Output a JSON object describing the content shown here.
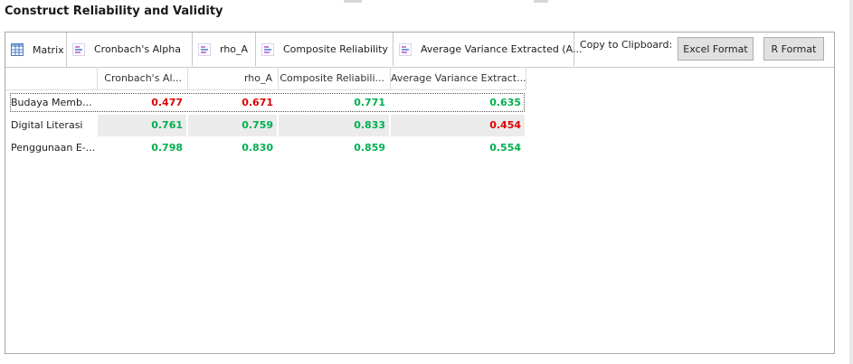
{
  "title": "Construct Reliability and Validity",
  "tabs": [
    {
      "label": "Matrix",
      "icon": "matrix-icon"
    },
    {
      "label": "Cronbach's Alpha",
      "icon": "chart-icon"
    },
    {
      "label": "rho_A",
      "icon": "chart-icon"
    },
    {
      "label": "Composite Reliability",
      "icon": "chart-icon"
    },
    {
      "label": "Average Variance Extracted (A...",
      "icon": "chart-icon"
    }
  ],
  "clipboard": {
    "label": "Copy to Clipboard:",
    "excel": "Excel Format",
    "r": "R Format"
  },
  "table": {
    "columns": [
      "Cronbach's Al...",
      "rho_A",
      "Composite Reliabili...",
      "Average Variance Extract..."
    ],
    "rows": [
      {
        "label": "Budaya Memb...",
        "values": [
          "0.477",
          "0.671",
          "0.771",
          "0.635"
        ],
        "status": [
          "red",
          "red",
          "green",
          "green"
        ]
      },
      {
        "label": "Digital Literasi",
        "values": [
          "0.761",
          "0.759",
          "0.833",
          "0.454"
        ],
        "status": [
          "green",
          "green",
          "green",
          "red"
        ]
      },
      {
        "label": "Penggunaan E-...",
        "values": [
          "0.798",
          "0.830",
          "0.859",
          "0.554"
        ],
        "status": [
          "green",
          "green",
          "green",
          "green"
        ]
      }
    ]
  },
  "colors": {
    "pass": "#00b050",
    "fail": "#e00000"
  }
}
